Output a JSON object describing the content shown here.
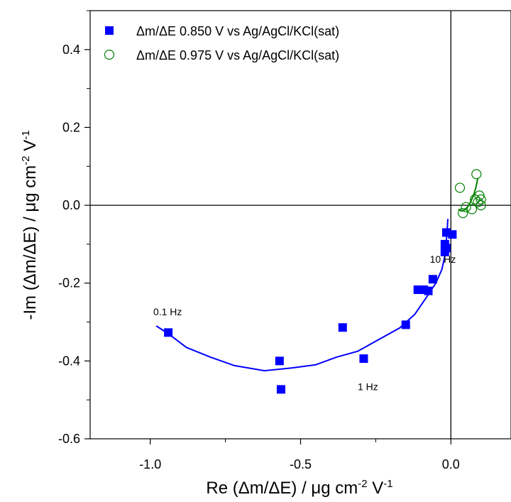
{
  "chart_data": {
    "type": "scatter",
    "xlabel": "Re (Δm/ΔE) / μg cm-2 V-1",
    "ylabel": "-Im (Δm/ΔE) / μg cm-2 V-1",
    "xlabel_parts": {
      "pre": "Re (Δm/ΔE) / μg cm",
      "sup1": "-2",
      "mid": " V",
      "sup2": "-1"
    },
    "ylabel_parts": {
      "pre": "-Im (Δm/ΔE) / μg cm",
      "sup1": "-2",
      "mid": " V",
      "sup2": "-1"
    },
    "xlim": [
      -1.2,
      0.2
    ],
    "ylim": [
      -0.6,
      0.5
    ],
    "x_ticks": [
      -1.0,
      -0.5,
      0.0
    ],
    "x_tick_labels": [
      "-1.0",
      "-0.5",
      "0.0"
    ],
    "y_ticks": [
      -0.6,
      -0.4,
      -0.2,
      0.0,
      0.2,
      0.4
    ],
    "y_tick_labels": [
      "-0.6",
      "-0.4",
      "-0.2",
      "0.0",
      "0.2",
      "0.4"
    ],
    "grid": false,
    "legend_position": "top",
    "series": [
      {
        "name": "Δm/ΔE 0.850 V vs Ag/AgCl/KCl(sat)",
        "marker": "filled-square",
        "color": "#0000ff",
        "x": [
          -0.94,
          -0.57,
          -0.565,
          -0.36,
          -0.29,
          -0.15,
          -0.11,
          -0.09,
          -0.075,
          -0.06,
          -0.02,
          -0.02,
          -0.015,
          -0.015,
          0.005
        ],
        "y": [
          -0.327,
          -0.4,
          -0.473,
          -0.314,
          -0.394,
          -0.307,
          -0.217,
          -0.217,
          -0.22,
          -0.19,
          -0.1,
          -0.12,
          -0.11,
          -0.07,
          -0.075
        ]
      },
      {
        "name": "Δm/ΔE 0.975 V vs Ag/AgCl/KCl(sat)",
        "marker": "open-circle",
        "color": "#008000",
        "x": [
          0.03,
          0.04,
          0.05,
          0.07,
          0.08,
          0.085,
          0.09,
          0.095,
          0.1,
          0.1
        ],
        "y": [
          0.045,
          -0.02,
          -0.005,
          -0.01,
          0.015,
          0.08,
          0.008,
          0.025,
          0.0,
          0.015
        ]
      }
    ],
    "fit_curves": [
      {
        "color": "#0000ff",
        "x": [
          -0.98,
          -0.94,
          -0.88,
          -0.8,
          -0.72,
          -0.62,
          -0.53,
          -0.45,
          -0.38,
          -0.31,
          -0.24,
          -0.17,
          -0.12,
          -0.08,
          -0.05,
          -0.03,
          -0.02,
          -0.015,
          -0.012,
          -0.01
        ],
        "y": [
          -0.31,
          -0.33,
          -0.365,
          -0.39,
          -0.412,
          -0.425,
          -0.418,
          -0.41,
          -0.39,
          -0.375,
          -0.345,
          -0.315,
          -0.28,
          -0.235,
          -0.2,
          -0.165,
          -0.13,
          -0.09,
          -0.06,
          -0.035
        ]
      },
      {
        "color": "#008000",
        "x": [
          0.025,
          0.035,
          0.045,
          0.055,
          0.065,
          0.075,
          0.083,
          0.09
        ],
        "y": [
          -0.01,
          -0.015,
          -0.012,
          -0.005,
          0.008,
          0.025,
          0.045,
          0.07
        ]
      }
    ],
    "annotations": [
      {
        "text": "0.1 Hz",
        "x": -0.99,
        "y": -0.283
      },
      {
        "text": "10 Hz",
        "x": -0.07,
        "y": -0.148
      },
      {
        "text": "1 Hz",
        "x": -0.31,
        "y": -0.475
      }
    ]
  }
}
